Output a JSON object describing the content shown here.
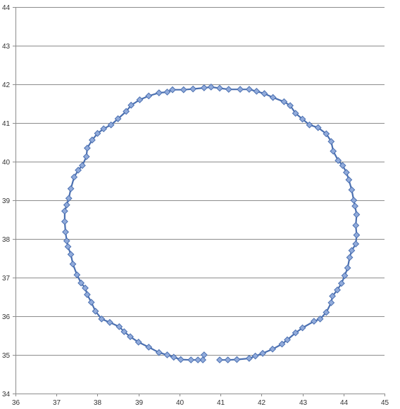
{
  "chart_data": {
    "type": "scatter",
    "title": "",
    "xlabel": "",
    "ylabel": "",
    "xlim": [
      36,
      45
    ],
    "ylim": [
      34,
      44
    ],
    "x_ticks": [
      "36",
      "37",
      "38",
      "39",
      "40",
      "41",
      "42",
      "43",
      "44",
      "45"
    ],
    "y_ticks": [
      "34",
      "35",
      "36",
      "37",
      "38",
      "39",
      "40",
      "41",
      "42",
      "43",
      "44"
    ],
    "grid": "horizontal",
    "legend": "none",
    "marker": "diamond",
    "line_color": "#4a6fb0",
    "marker_fill": "#91abdb",
    "marker_stroke": "#4a6fb0",
    "series": [
      {
        "points": [
          [
            40.6,
            35.0
          ],
          [
            40.57,
            34.87
          ],
          [
            40.45,
            34.87
          ],
          [
            40.28,
            34.87
          ],
          [
            40.03,
            34.88
          ],
          [
            39.86,
            34.94
          ],
          [
            39.7,
            35.0
          ],
          [
            39.5,
            35.06
          ],
          [
            39.25,
            35.2
          ],
          [
            39.0,
            35.33
          ],
          [
            38.8,
            35.47
          ],
          [
            38.65,
            35.6
          ],
          [
            38.53,
            35.73
          ],
          [
            38.3,
            35.84
          ],
          [
            38.1,
            35.93
          ],
          [
            37.95,
            36.13
          ],
          [
            37.85,
            36.36
          ],
          [
            37.75,
            36.56
          ],
          [
            37.7,
            36.73
          ],
          [
            37.6,
            36.86
          ],
          [
            37.5,
            37.07
          ],
          [
            37.4,
            37.35
          ],
          [
            37.35,
            37.6
          ],
          [
            37.28,
            37.8
          ],
          [
            37.25,
            37.95
          ],
          [
            37.22,
            38.18
          ],
          [
            37.2,
            38.45
          ],
          [
            37.2,
            38.72
          ],
          [
            37.25,
            38.88
          ],
          [
            37.3,
            39.05
          ],
          [
            37.35,
            39.3
          ],
          [
            37.43,
            39.6
          ],
          [
            37.53,
            39.78
          ],
          [
            37.63,
            39.9
          ],
          [
            37.73,
            40.13
          ],
          [
            37.75,
            40.35
          ],
          [
            37.87,
            40.56
          ],
          [
            38.0,
            40.73
          ],
          [
            38.15,
            40.85
          ],
          [
            38.33,
            40.95
          ],
          [
            38.5,
            41.11
          ],
          [
            38.7,
            41.3
          ],
          [
            38.82,
            41.46
          ],
          [
            39.03,
            41.6
          ],
          [
            39.25,
            41.7
          ],
          [
            39.5,
            41.78
          ],
          [
            39.7,
            41.8
          ],
          [
            39.83,
            41.86
          ],
          [
            40.1,
            41.86
          ],
          [
            40.33,
            41.88
          ],
          [
            40.6,
            41.91
          ],
          [
            40.77,
            41.93
          ],
          [
            40.98,
            41.9
          ],
          [
            41.2,
            41.87
          ],
          [
            41.48,
            41.87
          ],
          [
            41.7,
            41.87
          ],
          [
            41.88,
            41.82
          ],
          [
            42.07,
            41.76
          ],
          [
            42.28,
            41.66
          ],
          [
            42.55,
            41.55
          ],
          [
            42.7,
            41.45
          ],
          [
            42.83,
            41.25
          ],
          [
            43.0,
            41.1
          ],
          [
            43.17,
            40.95
          ],
          [
            43.38,
            40.88
          ],
          [
            43.58,
            40.72
          ],
          [
            43.7,
            40.52
          ],
          [
            43.75,
            40.27
          ],
          [
            43.87,
            40.03
          ],
          [
            43.98,
            39.9
          ],
          [
            44.07,
            39.72
          ],
          [
            44.13,
            39.53
          ],
          [
            44.2,
            39.27
          ],
          [
            44.25,
            39.0
          ],
          [
            44.28,
            38.85
          ],
          [
            44.32,
            38.63
          ],
          [
            44.3,
            38.35
          ],
          [
            44.32,
            38.1
          ],
          [
            44.3,
            37.87
          ],
          [
            44.2,
            37.7
          ],
          [
            44.15,
            37.52
          ],
          [
            44.1,
            37.25
          ],
          [
            44.03,
            37.05
          ],
          [
            43.95,
            36.85
          ],
          [
            43.85,
            36.68
          ],
          [
            43.73,
            36.52
          ],
          [
            43.7,
            36.35
          ],
          [
            43.58,
            36.1
          ],
          [
            43.43,
            35.93
          ],
          [
            43.28,
            35.87
          ],
          [
            43.0,
            35.7
          ],
          [
            42.83,
            35.57
          ],
          [
            42.63,
            35.39
          ],
          [
            42.5,
            35.28
          ],
          [
            42.27,
            35.15
          ],
          [
            42.03,
            35.04
          ],
          [
            41.85,
            34.97
          ],
          [
            41.7,
            34.91
          ],
          [
            41.4,
            34.88
          ],
          [
            41.18,
            34.87
          ],
          [
            40.98,
            34.87
          ]
        ]
      }
    ]
  }
}
